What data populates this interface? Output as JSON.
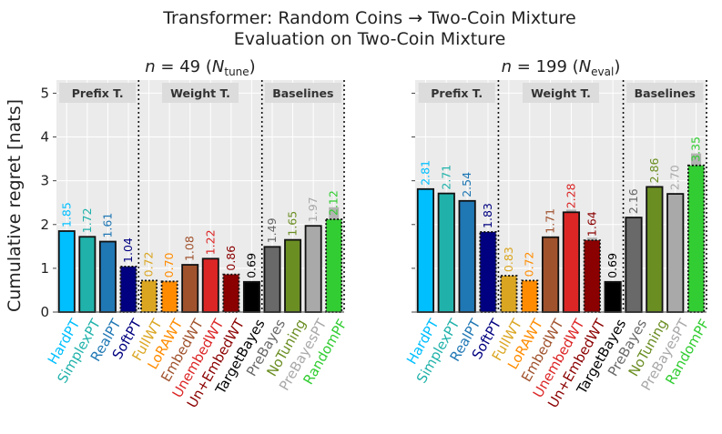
{
  "figure": {
    "title_line1": "Transformer: Random Coins → Two-Coin Mixture",
    "title_line2": "Evaluation on Two-Coin Mixture",
    "ylabel": "Cumulative regret [nats]"
  },
  "colors": {
    "plot_bg": "#ebebeb",
    "grid": "#ffffff",
    "label_bg": "#dcdcdc"
  },
  "chart_data": [
    {
      "type": "bar",
      "subtitle_n": "n = 49",
      "subtitle_sym": "N",
      "subtitle_sub": "tune",
      "ylabel": "Cumulative regret [nats]",
      "ylim": [
        0,
        5.3
      ],
      "yticks": [
        0,
        1,
        2,
        3,
        4,
        5
      ],
      "group_labels": [
        "Prefix T.",
        "Weight T.",
        "Baselines"
      ],
      "categories": [
        "HardPT",
        "SimplexPT",
        "RealPT",
        "SoftPT",
        "FullWT",
        "LoRAWT",
        "EmbedWT",
        "UnembedWT",
        "Un+EmbedWT",
        "TargetBayes",
        "PreBayes",
        "NoTuning",
        "PreBayesPT",
        "RandomPF"
      ],
      "values": [
        1.85,
        1.72,
        1.61,
        1.04,
        0.72,
        0.7,
        1.08,
        1.22,
        0.86,
        0.69,
        1.49,
        1.65,
        1.97,
        2.12
      ],
      "value_labels": [
        "1.85",
        "1.72",
        "1.61",
        "1.04",
        "0.72",
        "0.70",
        "1.08",
        "1.22",
        "0.86",
        "0.69",
        "1.49",
        "1.65",
        "1.97",
        "2.12"
      ],
      "colors": [
        "#00bfff",
        "#20b2aa",
        "#1f77b4",
        "#000080",
        "#daa520",
        "#ff8c00",
        "#a0522d",
        "#dc2626",
        "#8b0000",
        "#000000",
        "#696969",
        "#6b8e23",
        "#a9a9a9",
        "#32cd32"
      ],
      "dotted_borders": [
        false,
        false,
        false,
        true,
        true,
        true,
        false,
        false,
        true,
        false,
        false,
        false,
        false,
        true
      ],
      "error_bars": [
        0,
        0,
        0,
        0,
        0,
        0,
        0,
        0,
        0,
        0,
        0,
        0,
        0,
        0.55
      ]
    },
    {
      "type": "bar",
      "subtitle_n": "n = 199",
      "subtitle_sym": "N",
      "subtitle_sub": "eval",
      "ylim": [
        0,
        5.3
      ],
      "yticks": [
        0,
        1,
        2,
        3,
        4,
        5
      ],
      "group_labels": [
        "Prefix T.",
        "Weight T.",
        "Baselines"
      ],
      "categories": [
        "HardPT",
        "SimplexPT",
        "RealPT",
        "SoftPT",
        "FullWT",
        "LoRAWT",
        "EmbedWT",
        "UnembedWT",
        "Un+EmbedWT",
        "TargetBayes",
        "PreBayes",
        "NoTuning",
        "PreBayesPT",
        "RandomPF"
      ],
      "values": [
        2.81,
        2.71,
        2.54,
        1.83,
        0.83,
        0.72,
        1.71,
        2.28,
        1.64,
        0.69,
        2.16,
        2.86,
        2.7,
        3.35
      ],
      "value_labels": [
        "2.81",
        "2.71",
        "2.54",
        "1.83",
        "0.83",
        "0.72",
        "1.71",
        "2.28",
        "1.64",
        "0.69",
        "2.16",
        "2.86",
        "2.70",
        "3.35"
      ],
      "colors": [
        "#00bfff",
        "#20b2aa",
        "#1f77b4",
        "#000080",
        "#daa520",
        "#ff8c00",
        "#a0522d",
        "#dc2626",
        "#8b0000",
        "#000000",
        "#696969",
        "#6b8e23",
        "#a9a9a9",
        "#32cd32"
      ],
      "dotted_borders": [
        false,
        false,
        false,
        true,
        true,
        true,
        false,
        false,
        true,
        false,
        false,
        false,
        false,
        true
      ],
      "error_bars": [
        0,
        0,
        0,
        0,
        0,
        0,
        0,
        0.12,
        0.12,
        0,
        0,
        0,
        0,
        0.55
      ]
    }
  ]
}
